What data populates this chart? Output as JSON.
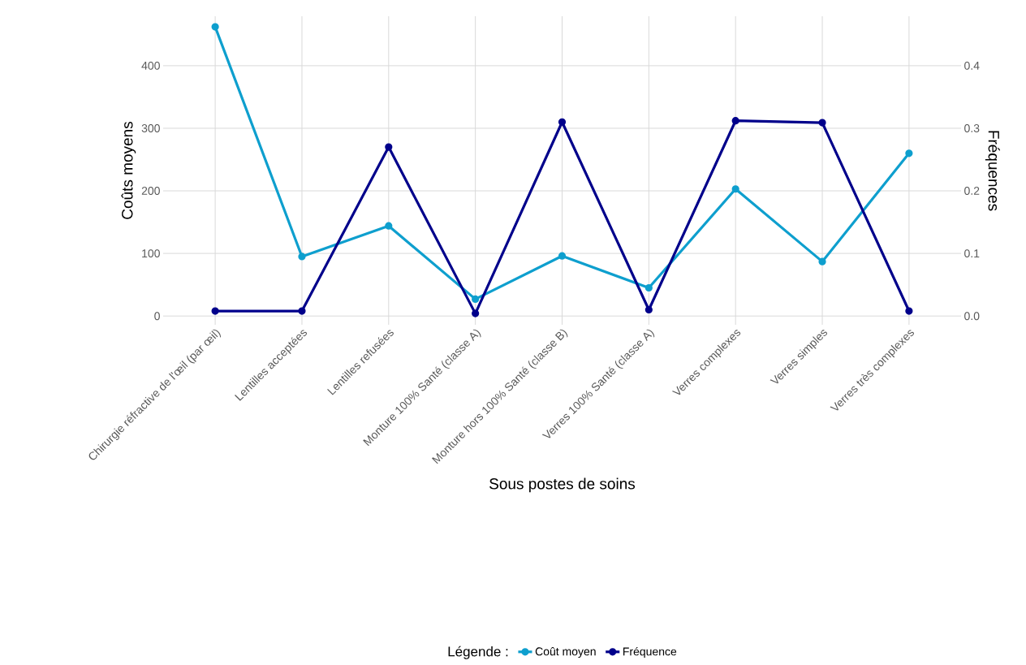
{
  "chart_data": {
    "type": "line",
    "xlabel": "Sous postes de soins",
    "ylabel": "Coûts moyens",
    "y2label": "Fréquences",
    "legend_title": "Légende :",
    "categories": [
      "Chirurgie réfractive de l'œil (par œil)",
      "Lentilles acceptées",
      "Lentilles refusées",
      "Monture 100% Santé (classe A)",
      "Monture hors 100% Santé (classe B)",
      "Verres 100% Santé (classe A)",
      "Verres complexes",
      "Verres simples",
      "Verres très complexes"
    ],
    "series": [
      {
        "name": "Coût moyen",
        "color": "#0e9fce",
        "values": [
          462,
          95,
          144,
          27,
          96,
          45,
          203,
          87,
          260
        ]
      },
      {
        "name": "Fréquence",
        "color": "#00008b",
        "axis": "y2",
        "values": [
          0.008,
          0.008,
          0.27,
          0.004,
          0.31,
          0.01,
          0.312,
          0.309,
          0.008
        ]
      }
    ],
    "ylim": [
      -14,
      479
    ],
    "yticks": [
      0,
      100,
      200,
      300,
      400
    ],
    "y2lim": [
      -0.014,
      0.479
    ],
    "y2ticks": [
      {
        "value": 0,
        "label": "0.0"
      },
      0.1,
      0.2,
      0.3,
      0.4
    ],
    "grid": true,
    "legend": "bottom",
    "marker": "circle",
    "line_style": "solid"
  }
}
